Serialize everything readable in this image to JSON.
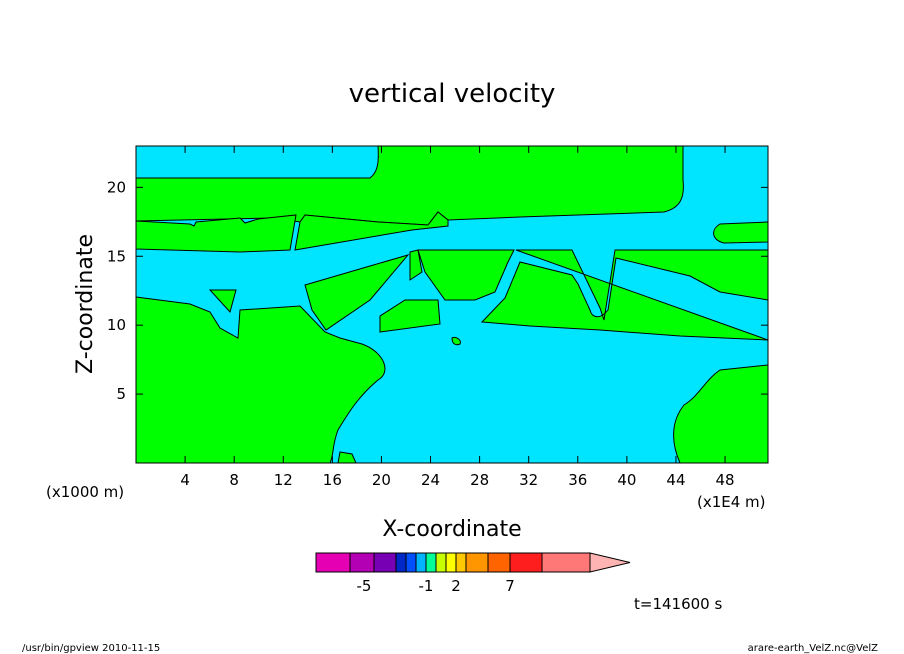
{
  "chart_data": {
    "type": "heatmap",
    "title": "vertical velocity",
    "xlabel": "X-coordinate",
    "ylabel": "Z-coordinate",
    "x_unit_left": "(x1000 m)",
    "x_unit_right": "(x1E4 m)",
    "xlim": [
      0,
      51.5
    ],
    "ylim": [
      0,
      23
    ],
    "xticks": [
      4,
      8,
      12,
      16,
      20,
      24,
      28,
      32,
      36,
      40,
      44,
      48
    ],
    "xtick_labels": [
      "4",
      "8",
      "12",
      "16",
      "20",
      "24",
      "28",
      "32",
      "36",
      "40",
      "44",
      "48"
    ],
    "yticks": [
      5,
      10,
      15,
      20
    ],
    "ytick_labels": [
      "5",
      "10",
      "15",
      "20"
    ],
    "fill_colors": {
      "positive": "#00ff00",
      "negative": "#00e5ff"
    },
    "colorbar": {
      "colors": [
        "#e600b4",
        "#b400b4",
        "#7800b4",
        "#0028c8",
        "#0050ff",
        "#00b4ff",
        "#00ff96",
        "#c8ff00",
        "#ffff00",
        "#ffc800",
        "#ff9600",
        "#ff6400",
        "#ff1e1e",
        "#ff7878"
      ],
      "arrow_color": "#ffb4b4",
      "tick_labels": [
        "-5",
        "-1",
        "2",
        "7"
      ]
    },
    "time_label": "t=141600 s"
  },
  "footer": {
    "left": "/usr/bin/gpview   2010-11-15",
    "right": "arare-earth_VelZ.nc@VelZ"
  }
}
